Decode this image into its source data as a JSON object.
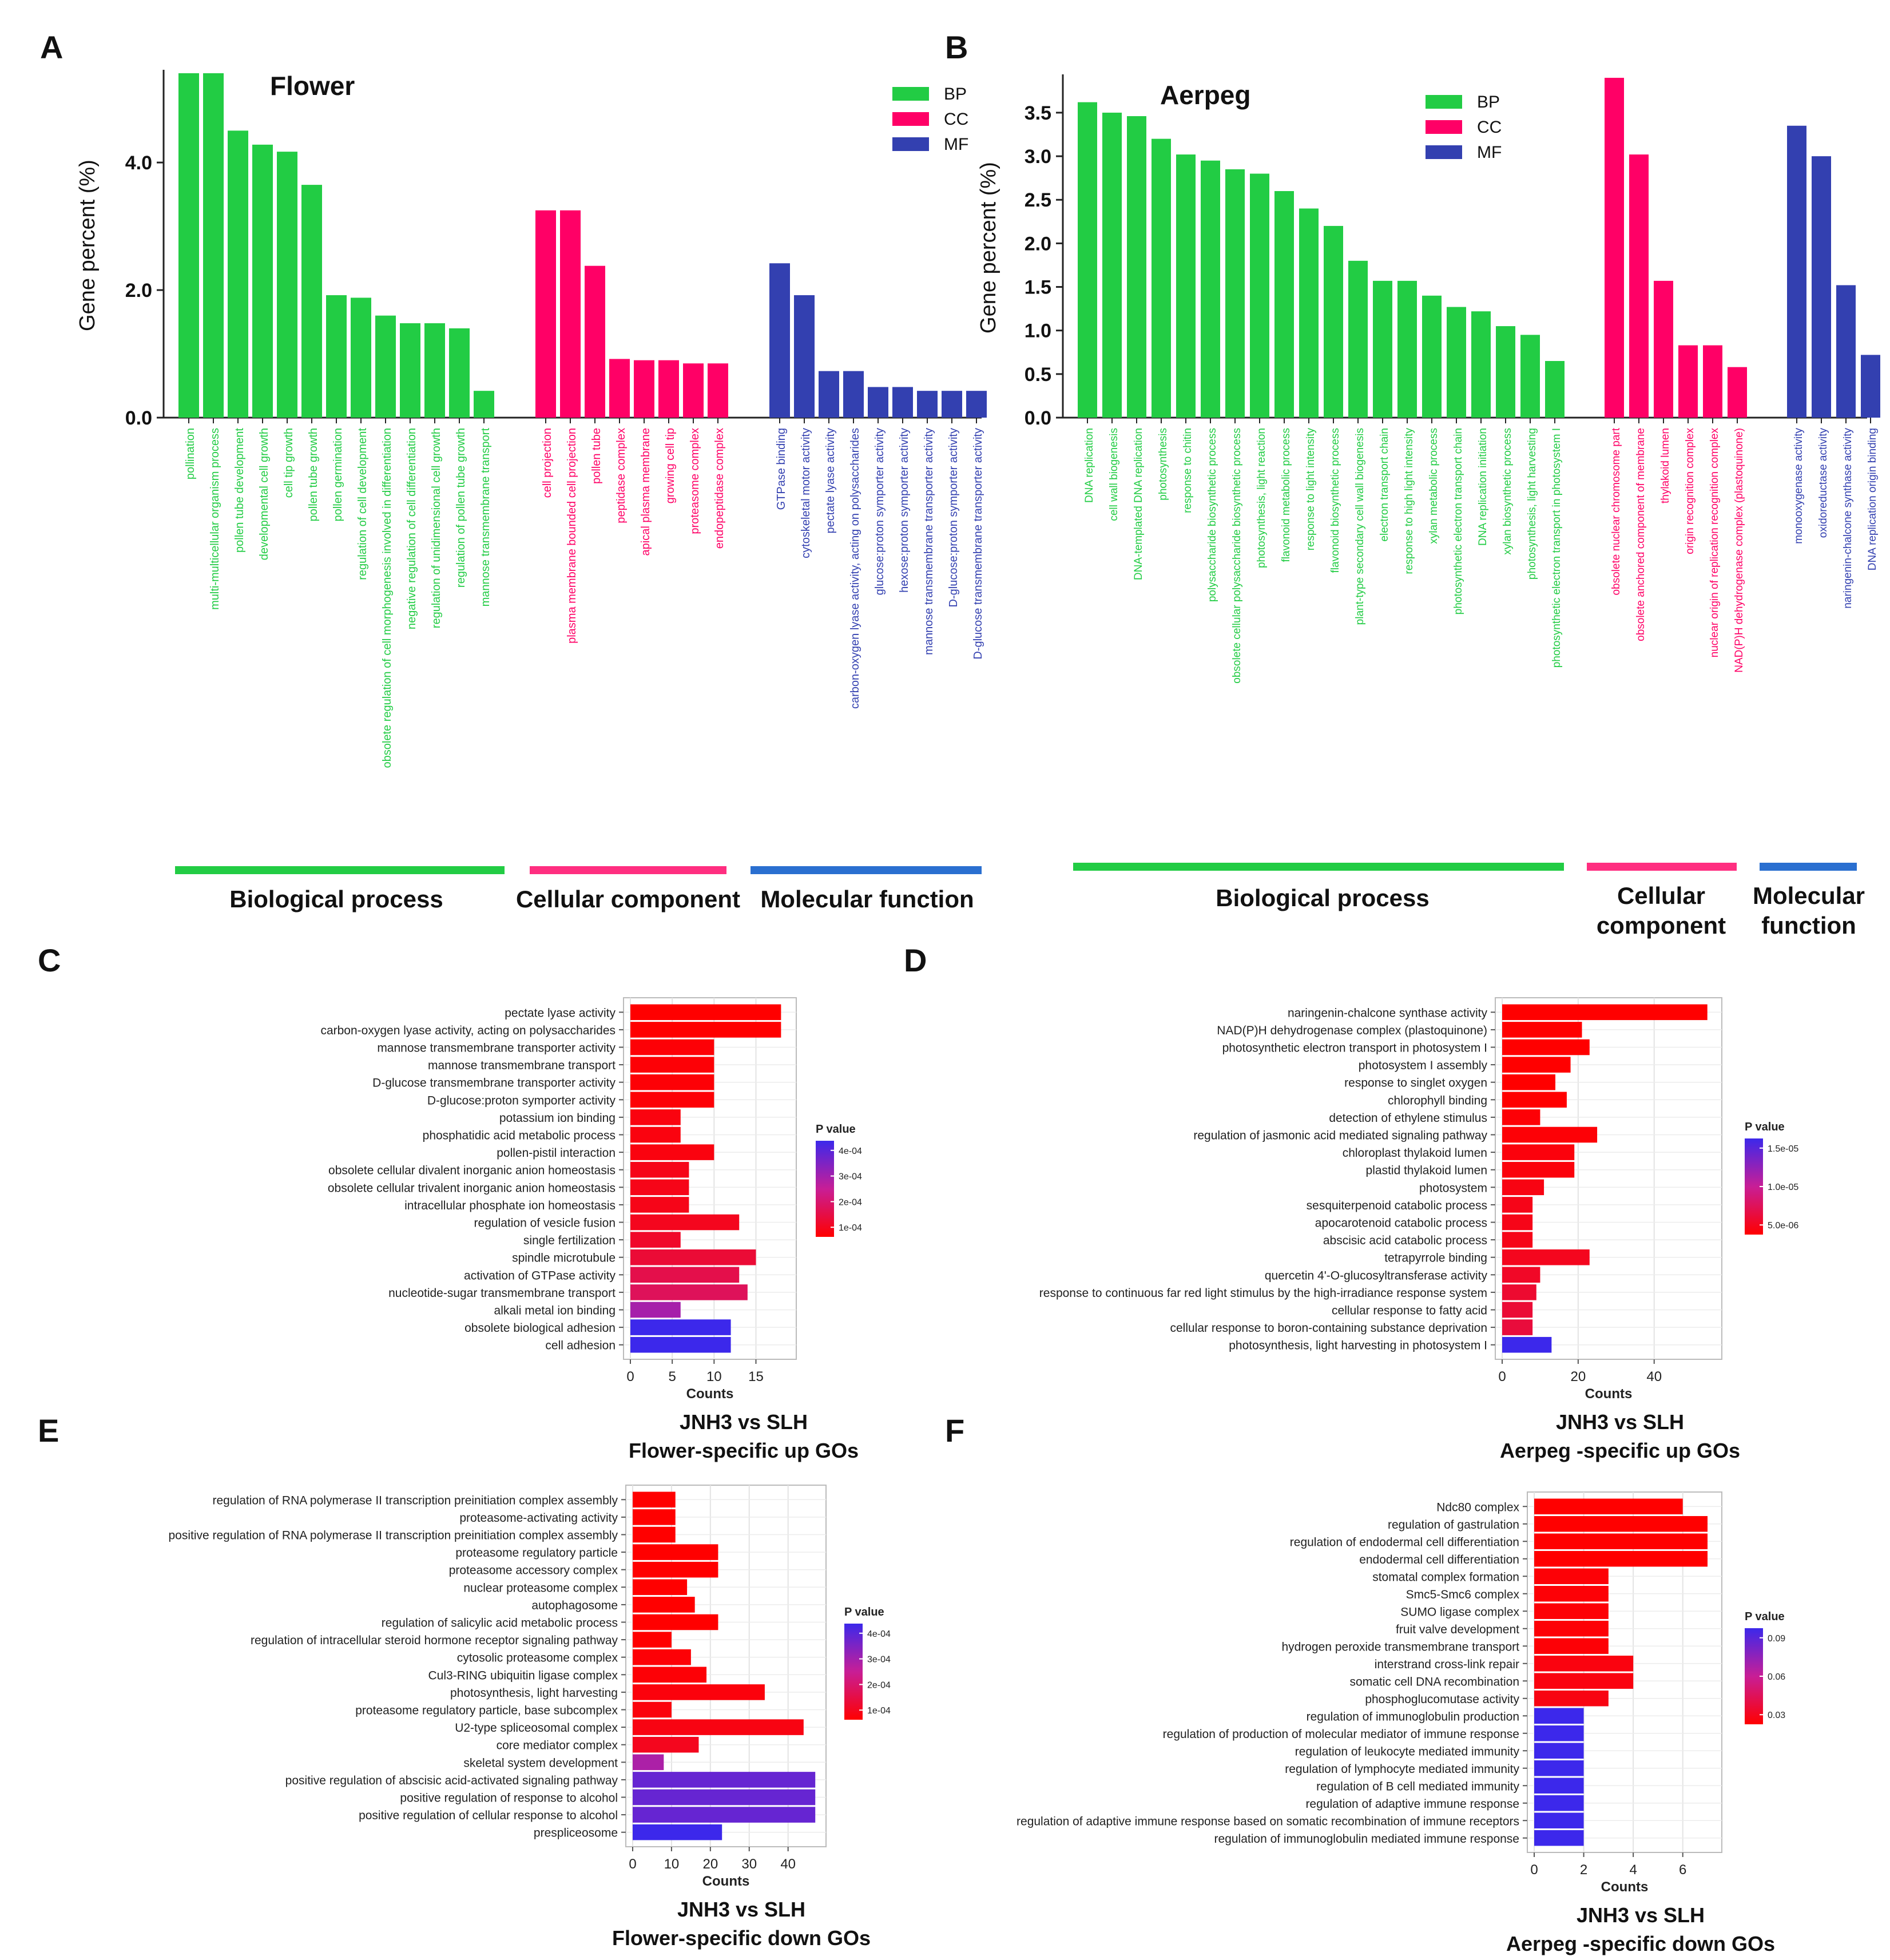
{
  "colors": {
    "BP": "#22cc44",
    "CC": "#ff0066",
    "MF": "#3340b0",
    "bar_BP": "#1a8fe0"
  },
  "panel_labels": [
    "A",
    "B",
    "C",
    "D",
    "E",
    "F"
  ],
  "category_names": {
    "BP": "Biological process",
    "CC": "Cellular component",
    "MF": "Molecular function",
    "CC_split": [
      "Cellular",
      "component"
    ],
    "MF_split": [
      "Molecular",
      "function"
    ]
  },
  "legend": [
    "BP",
    "CC",
    "MF"
  ],
  "common": {
    "ylabel_A": "Gene percent (%)",
    "counts_label": "Counts",
    "pvalue_label": "P value",
    "comparison": "JNH3 vs SLH"
  },
  "chart_data": [
    {
      "type": "bar",
      "panel": "A",
      "title": "Flower",
      "ylabel": "Gene percent (%)",
      "ylim": [
        0,
        5.4
      ],
      "yticks": [
        "0.0",
        "2.0",
        "4.0"
      ],
      "groups": [
        {
          "group": "BP",
          "categories": [
            "pollination",
            "multi-multicellular organism process",
            "pollen tube development",
            "developmental cell growth",
            "cell tip growth",
            "pollen tube growth",
            "pollen germination",
            "regulation of cell development",
            "obsolete regulation of cell morphogenesis involved in differentiation",
            "negative regulation of cell differentiation",
            "regulation of unidimensional cell growth",
            "regulation of pollen tube growth",
            "mannose transmembrane transport"
          ],
          "values": [
            5.4,
            5.4,
            4.5,
            4.28,
            4.17,
            3.65,
            1.92,
            1.88,
            1.6,
            1.48,
            1.48,
            1.4,
            0.42
          ]
        },
        {
          "group": "CC",
          "categories": [
            "cell projection",
            "plasma membrane bounded cell projection",
            "pollen tube",
            "peptidase complex",
            "apical plasma membrane",
            "growing cell tip",
            "proteasome complex",
            "endopeptidase complex"
          ],
          "values": [
            3.25,
            3.25,
            2.38,
            0.92,
            0.9,
            0.9,
            0.85,
            0.85
          ]
        },
        {
          "group": "MF",
          "categories": [
            "GTPase binding",
            "cytoskeletal motor activity",
            "pectate lyase activity",
            "carbon-oxygen lyase activity, acting on polysaccharides",
            "glucose:proton symporter activity",
            "hexose:proton symporter activity",
            "mannose transmembrane transporter activity",
            "D-glucose:proton symporter activity",
            "D-glucose transmembrane transporter activity"
          ],
          "values": [
            2.42,
            1.92,
            0.73,
            0.73,
            0.48,
            0.48,
            0.42,
            0.42,
            0.42
          ]
        }
      ]
    },
    {
      "type": "bar",
      "panel": "B",
      "title": "Aerpeg",
      "ylabel": "Gene percent (%)",
      "ylim": [
        0,
        3.9
      ],
      "yticks": [
        "0.0",
        "0.5",
        "1.0",
        "1.5",
        "2.0",
        "2.5",
        "3.0",
        "3.5"
      ],
      "groups": [
        {
          "group": "BP",
          "categories": [
            "DNA replication",
            "cell wall biogenesis",
            "DNA-templated DNA replication",
            "photosynthesis",
            "response to chitin",
            "polysaccharide biosynthetic process",
            "obsolete cellular polysaccharide biosynthetic process",
            "photosynthesis, light reaction",
            "flavonoid metabolic process",
            "response to light intensity",
            "flavonoid biosynthetic process",
            "plant-type secondary cell wall biogenesis",
            "electron transport chain",
            "response to high light intensity",
            "xylan metabolic process",
            "photosynthetic electron transport chain",
            "DNA replication initiation",
            "xylan biosynthetic process",
            "photosynthesis, light harvesting",
            "photosynthetic electron transport in photosystem I"
          ],
          "values": [
            3.62,
            3.5,
            3.46,
            3.2,
            3.02,
            2.95,
            2.85,
            2.8,
            2.6,
            2.4,
            2.2,
            1.8,
            1.57,
            1.57,
            1.4,
            1.27,
            1.22,
            1.05,
            0.95,
            0.65
          ]
        },
        {
          "group": "CC",
          "categories": [
            "obsolete nuclear chromosome part",
            "obsolete anchored component of membrane",
            "thylakoid lumen",
            "origin recognition complex",
            "nuclear origin of replication recognition complex",
            "NAD(P)H dehydrogenase complex (plastoquinone)"
          ],
          "values": [
            3.9,
            3.02,
            1.57,
            0.83,
            0.83,
            0.58
          ]
        },
        {
          "group": "MF",
          "categories": [
            "monooxygenase activity",
            "oxidoreductase activity",
            "naringenin-chalcone synthase activity",
            "DNA replication origin binding"
          ],
          "values": [
            3.35,
            3.0,
            1.52,
            0.72
          ]
        }
      ]
    },
    {
      "type": "bar",
      "orientation": "horizontal",
      "panel": "C",
      "title": [
        "JNH3 vs SLH",
        "Flower-specific up GOs"
      ],
      "xlabel": "Counts",
      "xlim": [
        0,
        19
      ],
      "xticks": [
        0,
        5,
        10,
        15
      ],
      "pvalue_ticks": [
        "4e-04",
        "3e-04",
        "2e-04",
        "1e-04"
      ],
      "categories": [
        "pectate lyase activity",
        "carbon-oxygen lyase activity, acting on polysaccharides",
        "mannose transmembrane transporter activity",
        "mannose transmembrane transport",
        "D-glucose transmembrane transporter activity",
        "D-glucose:proton symporter activity",
        "potassium ion binding",
        "phosphatidic acid metabolic process",
        "pollen-pistil interaction",
        "obsolete cellular divalent inorganic anion homeostasis",
        "obsolete cellular trivalent inorganic anion homeostasis",
        "intracellular phosphate ion homeostasis",
        "regulation of vesicle fusion",
        "single fertilization",
        "spindle microtubule",
        "activation of GTPase activity",
        "nucleotide-sugar transmembrane transport",
        "alkali metal ion binding",
        "obsolete biological adhesion",
        "cell adhesion"
      ],
      "values": [
        18,
        18,
        10,
        10,
        10,
        10,
        6,
        6,
        10,
        7,
        7,
        7,
        13,
        6,
        15,
        13,
        14,
        6,
        12,
        12
      ],
      "color_t": [
        0,
        0,
        0.02,
        0.02,
        0.02,
        0.02,
        0.05,
        0.05,
        0.05,
        0.08,
        0.08,
        0.08,
        0.1,
        0.14,
        0.18,
        0.25,
        0.3,
        0.62,
        1.0,
        1.0
      ]
    },
    {
      "type": "bar",
      "orientation": "horizontal",
      "panel": "D",
      "title": [
        "JNH3 vs SLH",
        "Aerpeg -specific up GOs"
      ],
      "xlabel": "Counts",
      "xlim": [
        0,
        56
      ],
      "xticks": [
        0,
        20,
        40
      ],
      "pvalue_ticks": [
        "1.5e-05",
        "1.0e-05",
        "5.0e-06"
      ],
      "categories": [
        "naringenin-chalcone synthase activity",
        "NAD(P)H dehydrogenase complex (plastoquinone)",
        "photosynthetic electron transport in photosystem I",
        "photosystem I assembly",
        "response to singlet oxygen",
        "chlorophyll binding",
        "detection of ethylene stimulus",
        "regulation of jasmonic acid mediated signaling pathway",
        "chloroplast thylakoid lumen",
        "plastid thylakoid lumen",
        "photosystem",
        "sesquiterpenoid catabolic process",
        "apocarotenoid catabolic process",
        "abscisic acid catabolic process",
        "tetrapyrrole binding",
        "quercetin 4'-O-glucosyltransferase activity",
        "response to continuous far red light stimulus by the high-irradiance response system",
        "cellular response to fatty acid",
        "cellular response to boron-containing substance deprivation",
        "photosynthesis, light harvesting in photosystem I"
      ],
      "values": [
        54,
        21,
        23,
        18,
        14,
        17,
        10,
        25,
        19,
        19,
        11,
        8,
        8,
        8,
        23,
        10,
        9,
        8,
        8,
        13
      ],
      "color_t": [
        0,
        0,
        0,
        0,
        0,
        0,
        0.02,
        0.02,
        0.04,
        0.04,
        0.06,
        0.08,
        0.08,
        0.08,
        0.1,
        0.13,
        0.16,
        0.18,
        0.2,
        1.0
      ]
    },
    {
      "type": "bar",
      "orientation": "horizontal",
      "panel": "E",
      "title": [
        "JNH3 vs SLH",
        "Flower-specific down GOs"
      ],
      "xlabel": "Counts",
      "xlim": [
        0,
        48
      ],
      "xticks": [
        0,
        10,
        20,
        30,
        40
      ],
      "pvalue_ticks": [
        "4e-04",
        "3e-04",
        "2e-04",
        "1e-04"
      ],
      "categories": [
        "regulation of RNA polymerase II transcription preinitiation complex assembly",
        "proteasome-activating activity",
        "positive regulation of RNA polymerase II transcription preinitiation complex assembly",
        "proteasome regulatory particle",
        "proteasome accessory complex",
        "nuclear proteasome complex",
        "autophagosome",
        "regulation of salicylic acid metabolic process",
        "regulation of intracellular steroid hormone receptor signaling pathway",
        "cytosolic proteasome complex",
        "Cul3-RING ubiquitin ligase complex",
        "photosynthesis, light harvesting",
        "proteasome regulatory particle, base subcomplex",
        "U2-type spliceosomal complex",
        "core mediator complex",
        "skeletal system development",
        "positive regulation of abscisic acid-activated signaling pathway",
        "positive regulation of response to alcohol",
        "positive regulation of cellular response to alcohol",
        "prespliceosome"
      ],
      "values": [
        11,
        11,
        11,
        22,
        22,
        14,
        16,
        22,
        10,
        15,
        19,
        34,
        10,
        44,
        17,
        8,
        47,
        47,
        47,
        23
      ],
      "color_t": [
        0,
        0,
        0,
        0,
        0,
        0,
        0,
        0,
        0,
        0.02,
        0.02,
        0.04,
        0.04,
        0.06,
        0.1,
        0.6,
        0.85,
        0.85,
        0.85,
        1.0
      ]
    },
    {
      "type": "bar",
      "orientation": "horizontal",
      "panel": "F",
      "title": [
        "JNH3 vs SLH",
        "Aerpeg -specific down GOs"
      ],
      "xlabel": "Counts",
      "xlim": [
        0,
        7.3
      ],
      "xticks": [
        0,
        2,
        4,
        6
      ],
      "pvalue_ticks": [
        "0.09",
        "0.06",
        "0.03"
      ],
      "categories": [
        "Ndc80 complex",
        "regulation of gastrulation",
        "regulation of endodermal cell differentiation",
        "endodermal cell differentiation",
        "stomatal complex formation",
        "Smc5-Smc6 complex",
        "SUMO ligase complex",
        "fruit valve development",
        "hydrogen peroxide transmembrane transport",
        "interstrand cross-link repair",
        "somatic cell DNA recombination",
        "phosphoglucomutase activity",
        "regulation of immunoglobulin production",
        "regulation of production of molecular mediator of immune response",
        "regulation of leukocyte mediated immunity",
        "regulation of lymphocyte mediated immunity",
        "regulation of B cell mediated immunity",
        "regulation of adaptive immune response",
        "regulation of adaptive immune response based on somatic recombination of immune receptors",
        "regulation of immunoglobulin mediated immune response"
      ],
      "values": [
        6,
        7,
        7,
        7,
        3,
        3,
        3,
        3,
        3,
        4,
        4,
        3,
        2,
        2,
        2,
        2,
        2,
        2,
        2,
        2
      ],
      "color_t": [
        0,
        0,
        0,
        0,
        0.02,
        0.02,
        0.02,
        0.02,
        0.02,
        0.05,
        0.05,
        0.06,
        1.0,
        1.0,
        1.0,
        1.0,
        1.0,
        1.0,
        1.0,
        1.0
      ]
    }
  ]
}
